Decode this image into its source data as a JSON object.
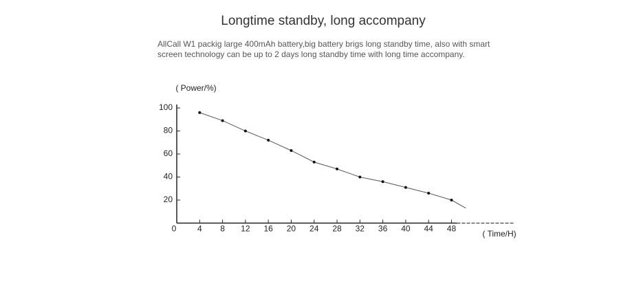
{
  "chart_data": {
    "type": "line",
    "title": "Longtime standby, long accompany",
    "description": [
      "AllCall W1 packig large 400mAh battery,big battery brigs long standby time, also with smart",
      "screen technology can be up to 2 days long standby time with long time accompany."
    ],
    "y_label": "( Power/%)",
    "x_label": "( Time/H)",
    "x": [
      4,
      8,
      12,
      16,
      20,
      24,
      28,
      32,
      36,
      40,
      44,
      48,
      50.5
    ],
    "series": [
      {
        "color": "#555555",
        "values": [
          96,
          89,
          80,
          72,
          63,
          53,
          47,
          40,
          36,
          31,
          26,
          20,
          13
        ]
      }
    ],
    "xlim": [
      0,
      59
    ],
    "xticks": [
      0,
      4,
      8,
      12,
      16,
      20,
      24,
      28,
      32,
      36,
      40,
      44,
      48
    ],
    "ylim": [
      0,
      103
    ],
    "yticks": [
      20,
      40,
      60,
      80,
      100
    ]
  }
}
